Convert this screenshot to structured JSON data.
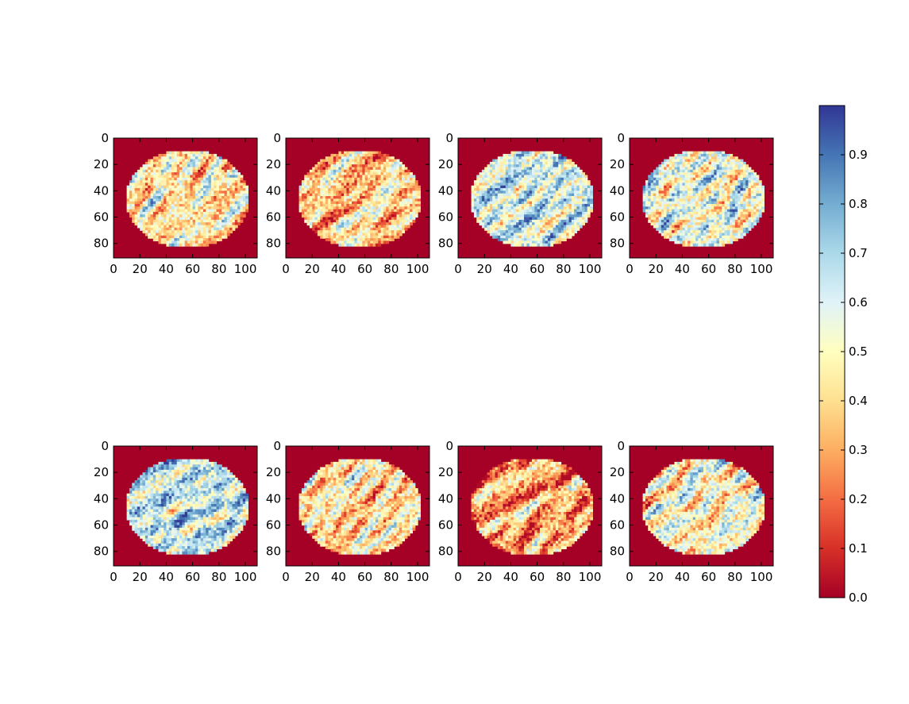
{
  "chart_data": {
    "type": "heatmap",
    "layout": {
      "rows": 2,
      "cols": 4
    },
    "colormap": "RdYlBu",
    "colormap_stops": [
      "#a50026",
      "#d73027",
      "#f46d43",
      "#fdae61",
      "#fee090",
      "#ffffbf",
      "#e0f3f8",
      "#abd9e9",
      "#74add1",
      "#4575b4",
      "#313695"
    ],
    "background_value": 0.0,
    "panels": [
      {
        "index": 1,
        "mean_brain_value": 0.45,
        "bias": "mixed-red"
      },
      {
        "index": 2,
        "mean_brain_value": 0.38,
        "bias": "mixed-red"
      },
      {
        "index": 3,
        "mean_brain_value": 0.62,
        "bias": "blue"
      },
      {
        "index": 4,
        "mean_brain_value": 0.55,
        "bias": "mixed-blue"
      },
      {
        "index": 5,
        "mean_brain_value": 0.65,
        "bias": "blue"
      },
      {
        "index": 6,
        "mean_brain_value": 0.42,
        "bias": "mixed"
      },
      {
        "index": 7,
        "mean_brain_value": 0.3,
        "bias": "yellow-orange"
      },
      {
        "index": 8,
        "mean_brain_value": 0.5,
        "bias": "mixed"
      }
    ],
    "image_width": 109,
    "image_height": 91,
    "x_ticks": [
      "0",
      "20",
      "40",
      "60",
      "80",
      "100"
    ],
    "y_ticks": [
      "0",
      "20",
      "40",
      "60",
      "80"
    ],
    "colorbar": {
      "range": [
        0.0,
        1.0
      ],
      "ticks": [
        "0.0",
        "0.1",
        "0.2",
        "0.3",
        "0.4",
        "0.5",
        "0.6",
        "0.7",
        "0.8",
        "0.9"
      ]
    }
  }
}
